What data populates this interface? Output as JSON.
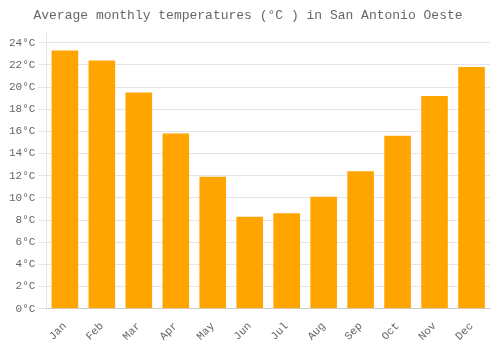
{
  "chart_data": {
    "type": "bar",
    "title": "Average monthly temperatures (°C ) in San Antonio Oeste",
    "categories": [
      "Jan",
      "Feb",
      "Mar",
      "Apr",
      "May",
      "Jun",
      "Jul",
      "Aug",
      "Sep",
      "Oct",
      "Nov",
      "Dec"
    ],
    "values": [
      23.3,
      22.4,
      19.5,
      15.8,
      11.9,
      8.3,
      8.6,
      10.1,
      12.4,
      15.6,
      19.2,
      21.8
    ],
    "color": "#FFA500",
    "ylim": [
      0,
      25
    ],
    "yticks": [
      {
        "value": 0,
        "label": "0°C"
      },
      {
        "value": 2,
        "label": "2°C"
      },
      {
        "value": 4,
        "label": "4°C"
      },
      {
        "value": 6,
        "label": "6°C"
      },
      {
        "value": 8,
        "label": "8°C"
      },
      {
        "value": 10,
        "label": "10°C"
      },
      {
        "value": 12,
        "label": "12°C"
      },
      {
        "value": 14,
        "label": "14°C"
      },
      {
        "value": 16,
        "label": "16°C"
      },
      {
        "value": 18,
        "label": "18°C"
      },
      {
        "value": 20,
        "label": "20°C"
      },
      {
        "value": 22,
        "label": "22°C"
      },
      {
        "value": 24,
        "label": "24°C"
      }
    ],
    "grid": true
  }
}
